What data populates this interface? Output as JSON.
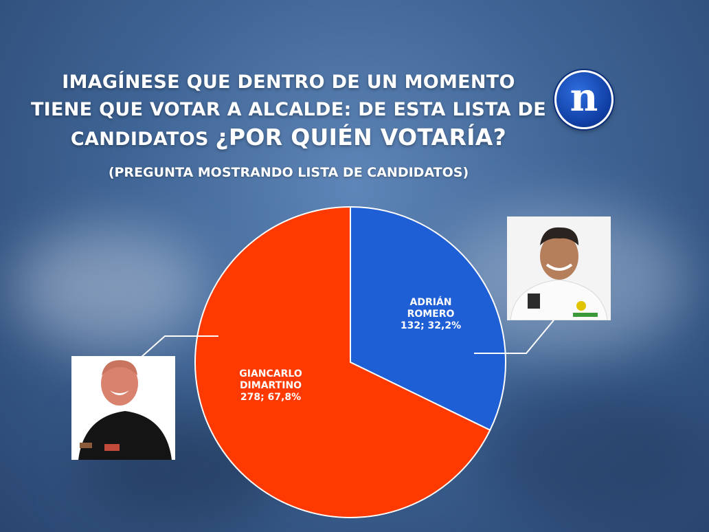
{
  "title_line1": "IMAGÍNESE QUE DENTRO DE UN MOMENTO",
  "title_line2": "TIENE QUE VOTAR A ALCALDE: DE ESTA LISTA DE",
  "title_line3_a": "CANDIDATOS ",
  "title_line3_b": "¿POR QUIÉN VOTARÍA?",
  "subtitle": "(PREGUNTA MOSTRANDO LISTA DE CANDIDATOS)",
  "logo_letter": "n",
  "colors": {
    "romero": "#1f5fd6",
    "dimartino": "#ff3a00"
  },
  "chart_data": {
    "type": "pie",
    "slices": [
      {
        "label_line1": "ADRIÁN",
        "label_line2": "ROMERO",
        "value_text": "132; 32,2%",
        "value": 132,
        "percent": 32.2,
        "color": "#1f5fd6"
      },
      {
        "label_line1": "GIANCARLO",
        "label_line2": "DIMARTINO",
        "value_text": "278; 67,8%",
        "value": 278,
        "percent": 67.8,
        "color": "#ff3a00"
      }
    ]
  }
}
